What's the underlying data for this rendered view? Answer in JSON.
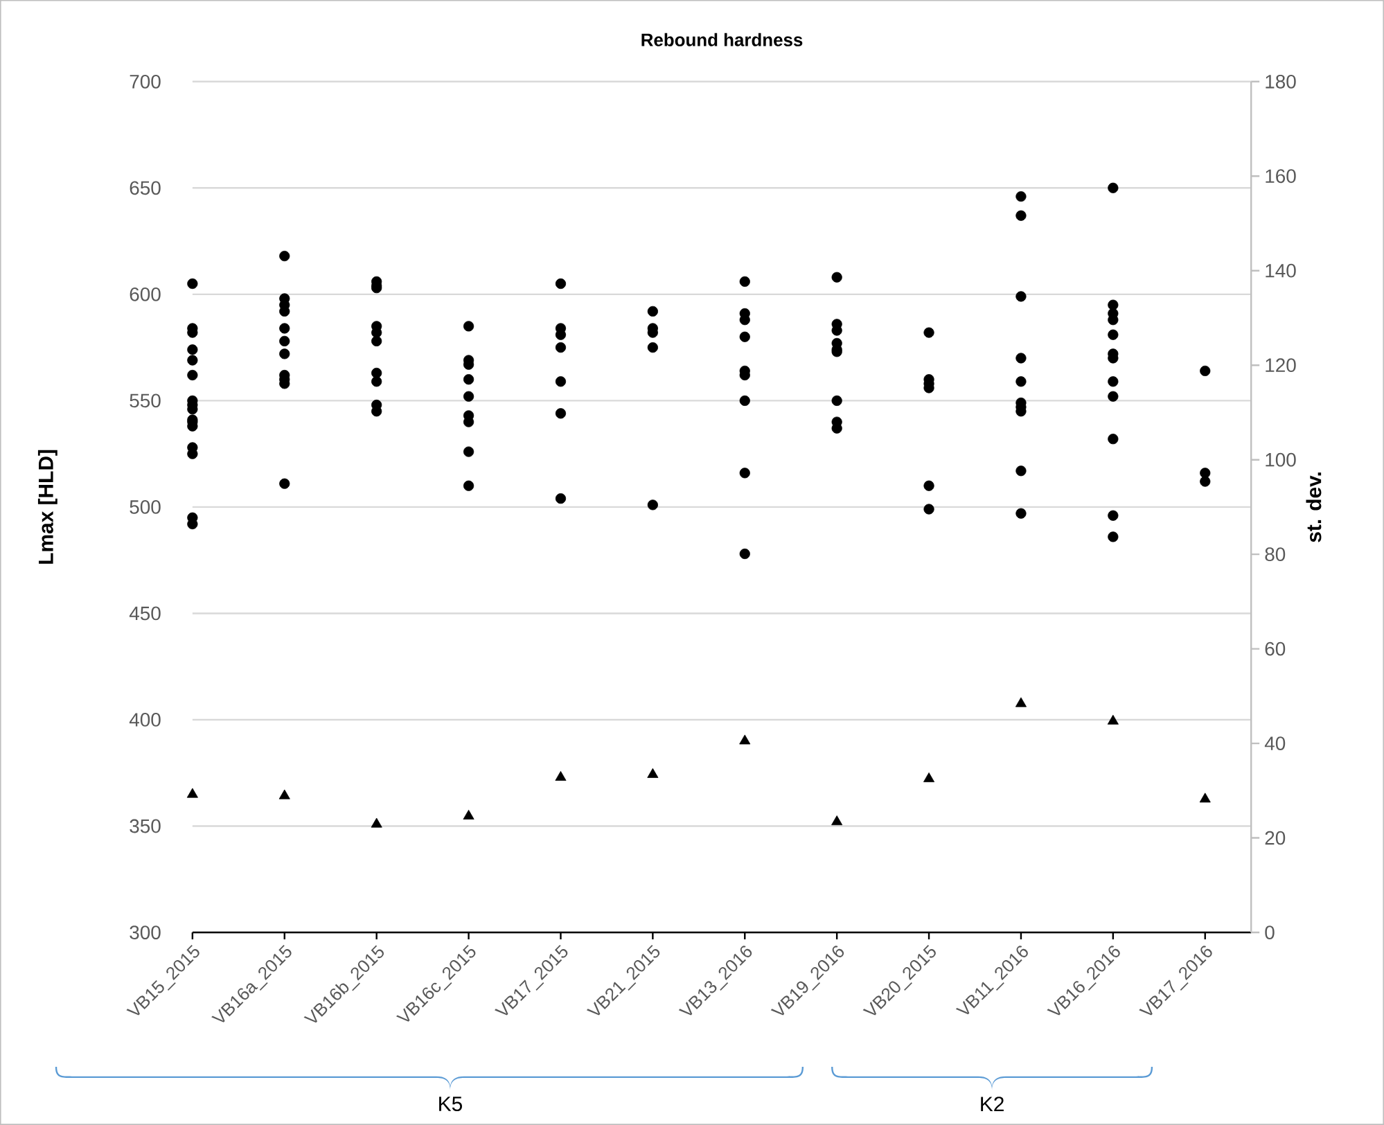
{
  "chart_data": {
    "type": "scatter",
    "title": "Rebound hardness",
    "ylabel": "Lmax [HLD]",
    "y2label": "st. dev.",
    "categories": [
      "VB15_2015",
      "VB16a_2015",
      "VB16b_2015",
      "VB16c_2015",
      "VB17_2015",
      "VB21_2015",
      "VB13_2016",
      "VB19_2016",
      "VB20_2015",
      "VB11_2016",
      "VB16_2016",
      "VB17_2016"
    ],
    "series": [
      {
        "color": "#000000",
        "marker": "circle",
        "x": [
          "VB15_2015",
          "VB15_2015",
          "VB15_2015",
          "VB15_2015",
          "VB15_2015",
          "VB15_2015",
          "VB15_2015",
          "VB15_2015",
          "VB15_2015",
          "VB15_2015",
          "VB15_2015",
          "VB15_2015",
          "VB15_2015",
          "VB15_2015",
          "VB15_2015",
          "VB15_2015",
          "VB16a_2015",
          "VB16a_2015",
          "VB16a_2015",
          "VB16a_2015",
          "VB16a_2015",
          "VB16a_2015",
          "VB16a_2015",
          "VB16a_2015",
          "VB16a_2015",
          "VB16a_2015",
          "VB16a_2015",
          "VB16b_2015",
          "VB16b_2015",
          "VB16b_2015",
          "VB16b_2015",
          "VB16b_2015",
          "VB16b_2015",
          "VB16b_2015",
          "VB16b_2015",
          "VB16b_2015",
          "VB16b_2015",
          "VB16c_2015",
          "VB16c_2015",
          "VB16c_2015",
          "VB16c_2015",
          "VB16c_2015",
          "VB16c_2015",
          "VB16c_2015",
          "VB16c_2015",
          "VB16c_2015",
          "VB17_2015",
          "VB17_2015",
          "VB17_2015",
          "VB17_2015",
          "VB17_2015",
          "VB17_2015",
          "VB17_2015",
          "VB21_2015",
          "VB21_2015",
          "VB21_2015",
          "VB21_2015",
          "VB21_2015",
          "VB13_2016",
          "VB13_2016",
          "VB13_2016",
          "VB13_2016",
          "VB13_2016",
          "VB13_2016",
          "VB13_2016",
          "VB13_2016",
          "VB13_2016",
          "VB19_2016",
          "VB19_2016",
          "VB19_2016",
          "VB19_2016",
          "VB19_2016",
          "VB19_2016",
          "VB19_2016",
          "VB19_2016",
          "VB19_2016",
          "VB20_2015",
          "VB20_2015",
          "VB20_2015",
          "VB20_2015",
          "VB20_2015",
          "VB20_2015",
          "VB11_2016",
          "VB11_2016",
          "VB11_2016",
          "VB11_2016",
          "VB11_2016",
          "VB11_2016",
          "VB11_2016",
          "VB11_2016",
          "VB11_2016",
          "VB11_2016",
          "VB16_2016",
          "VB16_2016",
          "VB16_2016",
          "VB16_2016",
          "VB16_2016",
          "VB16_2016",
          "VB16_2016",
          "VB16_2016",
          "VB16_2016",
          "VB16_2016",
          "VB16_2016",
          "VB16_2016",
          "VB17_2016",
          "VB17_2016",
          "VB17_2016"
        ],
        "values": [
          605,
          584,
          582,
          574,
          569,
          562,
          550,
          548,
          546,
          541,
          540,
          538,
          528,
          525,
          495,
          492,
          618,
          598,
          595,
          592,
          584,
          578,
          572,
          562,
          560,
          558,
          511,
          606,
          604,
          603,
          585,
          582,
          578,
          563,
          559,
          548,
          545,
          585,
          569,
          567,
          560,
          552,
          543,
          540,
          526,
          510,
          605,
          584,
          581,
          575,
          559,
          544,
          504,
          592,
          584,
          582,
          575,
          501,
          606,
          591,
          588,
          580,
          564,
          562,
          550,
          516,
          478,
          608,
          586,
          583,
          577,
          574,
          573,
          550,
          540,
          537,
          582,
          560,
          558,
          556,
          510,
          499,
          646,
          637,
          599,
          570,
          559,
          549,
          547,
          545,
          517,
          497,
          650,
          595,
          591,
          588,
          581,
          572,
          570,
          559,
          552,
          532,
          496,
          486,
          564,
          516,
          512
        ]
      },
      {
        "color": "#000000",
        "marker": "triangle",
        "axis": "y2",
        "values": [
          29.2,
          28.9,
          22.9,
          24.6,
          32.8,
          33.4,
          40.5,
          23.4,
          32.5,
          48.4,
          44.7,
          28.2
        ]
      }
    ],
    "ylim": [
      300,
      700
    ],
    "yticks": [
      300,
      350,
      400,
      450,
      500,
      550,
      600,
      650,
      700
    ],
    "y2lim": [
      0,
      180
    ],
    "y2ticks": [
      0,
      20,
      40,
      60,
      80,
      100,
      120,
      140,
      160,
      180
    ],
    "grid": "y",
    "annotations": [
      "K5",
      "K2"
    ]
  }
}
